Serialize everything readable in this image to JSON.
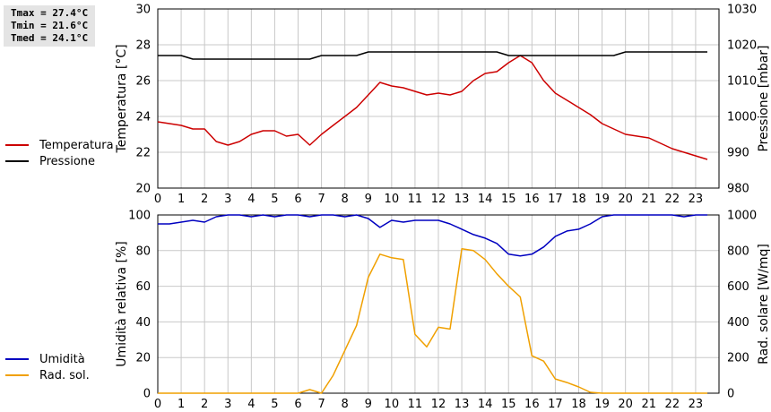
{
  "stats": {
    "tmax": "Tmax = 27.4°C",
    "tmin": "Tmin = 21.6°C",
    "tmed": "Tmed = 24.1°C"
  },
  "legend_top": [
    {
      "label": "Temperatura",
      "color": "#cc0000"
    },
    {
      "label": "Pressione",
      "color": "#000000"
    }
  ],
  "legend_bottom": [
    {
      "label": "Umidità",
      "color": "#0000c0"
    },
    {
      "label": "Rad. sol.",
      "color": "#f0a000"
    }
  ],
  "chart_data": [
    {
      "type": "line",
      "xlim": [
        0,
        24
      ],
      "x_ticks": [
        "0",
        "1",
        "2",
        "3",
        "4",
        "5",
        "6",
        "7",
        "8",
        "9",
        "10",
        "11",
        "12",
        "13",
        "14",
        "15",
        "16",
        "17",
        "18",
        "19",
        "20",
        "21",
        "22",
        "23"
      ],
      "ylabel": "Temperatura [°C]",
      "ylim": [
        20,
        30
      ],
      "y_ticks": [
        "20",
        "22",
        "24",
        "26",
        "28",
        "30"
      ],
      "ylabel_right": "Pressione [mbar]",
      "ylim_right": [
        980,
        1030
      ],
      "y_ticks_right": [
        "980",
        "990",
        "1000",
        "1010",
        "1020",
        "1030"
      ],
      "grid": true,
      "series": [
        {
          "name": "Temperatura",
          "axis": "left",
          "color": "#cc0000",
          "x": [
            0,
            0.5,
            1,
            1.5,
            2,
            2.5,
            3,
            3.5,
            4,
            4.5,
            5,
            5.5,
            6,
            6.5,
            7,
            7.5,
            8,
            8.5,
            9,
            9.5,
            10,
            10.5,
            11,
            11.5,
            12,
            12.5,
            13,
            13.5,
            14,
            14.5,
            15,
            15.5,
            16,
            16.5,
            17,
            17.5,
            18,
            18.5,
            19,
            19.5,
            20,
            20.5,
            21,
            21.5,
            22,
            22.5,
            23,
            23.5
          ],
          "y": [
            23.7,
            23.6,
            23.5,
            23.3,
            23.3,
            22.6,
            22.4,
            22.6,
            23.0,
            23.2,
            23.2,
            22.9,
            23.0,
            22.4,
            23.0,
            23.5,
            24.0,
            24.5,
            25.2,
            25.9,
            25.7,
            25.6,
            25.4,
            25.2,
            25.3,
            25.2,
            25.4,
            26.0,
            26.4,
            26.5,
            27.0,
            27.4,
            27.0,
            26.0,
            25.3,
            24.9,
            24.5,
            24.1,
            23.6,
            23.3,
            23.0,
            22.9,
            22.8,
            22.5,
            22.2,
            22.0,
            21.8,
            21.6
          ]
        },
        {
          "name": "Pressione",
          "axis": "right",
          "color": "#000000",
          "x": [
            0,
            1,
            1.5,
            6.5,
            7,
            8.5,
            9,
            14.5,
            15,
            19.5,
            20,
            23.5
          ],
          "y": [
            1017,
            1017,
            1016,
            1016,
            1017,
            1017,
            1018,
            1018,
            1017,
            1017,
            1018,
            1018
          ]
        }
      ]
    },
    {
      "type": "line",
      "xlim": [
        0,
        24
      ],
      "x_ticks": [
        "0",
        "1",
        "2",
        "3",
        "4",
        "5",
        "6",
        "7",
        "8",
        "9",
        "10",
        "11",
        "12",
        "13",
        "14",
        "15",
        "16",
        "17",
        "18",
        "19",
        "20",
        "21",
        "22",
        "23"
      ],
      "ylabel": "Umidità relativa [%]",
      "ylim": [
        0,
        100
      ],
      "y_ticks": [
        "0",
        "20",
        "40",
        "60",
        "80",
        "100"
      ],
      "ylabel_right": "Rad. solare [W/mq]",
      "ylim_right": [
        0,
        1000
      ],
      "y_ticks_right": [
        "0",
        "200",
        "400",
        "600",
        "800",
        "1000"
      ],
      "grid": true,
      "series": [
        {
          "name": "Umidità",
          "axis": "left",
          "color": "#0000c0",
          "x": [
            0,
            0.5,
            1,
            1.5,
            2,
            2.5,
            3,
            3.5,
            4,
            4.5,
            5,
            5.5,
            6,
            6.5,
            7,
            7.5,
            8,
            8.5,
            9,
            9.5,
            10,
            10.5,
            11,
            11.5,
            12,
            12.5,
            13,
            13.5,
            14,
            14.5,
            15,
            15.5,
            16,
            16.5,
            17,
            17.5,
            18,
            18.5,
            19,
            19.5,
            20,
            20.5,
            21,
            21.5,
            22,
            22.5,
            23,
            23.5
          ],
          "y": [
            95,
            95,
            96,
            97,
            96,
            99,
            100,
            100,
            99,
            100,
            99,
            100,
            100,
            99,
            100,
            100,
            99,
            100,
            98,
            93,
            97,
            96,
            97,
            97,
            97,
            95,
            92,
            89,
            87,
            84,
            78,
            77,
            78,
            82,
            88,
            91,
            92,
            95,
            99,
            100,
            100,
            100,
            100,
            100,
            100,
            99,
            100,
            100
          ]
        },
        {
          "name": "Rad. sol.",
          "axis": "right",
          "color": "#f0a000",
          "x": [
            0,
            1,
            2,
            3,
            4,
            5,
            6,
            6.5,
            7,
            7.5,
            8,
            8.5,
            9,
            9.5,
            10,
            10.5,
            11,
            11.5,
            12,
            12.5,
            13,
            13.5,
            14,
            14.5,
            15,
            15.5,
            16,
            16.5,
            17,
            17.5,
            18,
            18.5,
            19,
            20,
            21,
            22,
            23,
            23.5
          ],
          "y": [
            0,
            0,
            0,
            0,
            0,
            0,
            0,
            20,
            0,
            100,
            240,
            380,
            650,
            780,
            760,
            750,
            330,
            260,
            370,
            360,
            810,
            800,
            750,
            670,
            600,
            540,
            210,
            180,
            80,
            60,
            35,
            5,
            0,
            0,
            0,
            0,
            0,
            0
          ]
        }
      ]
    }
  ]
}
